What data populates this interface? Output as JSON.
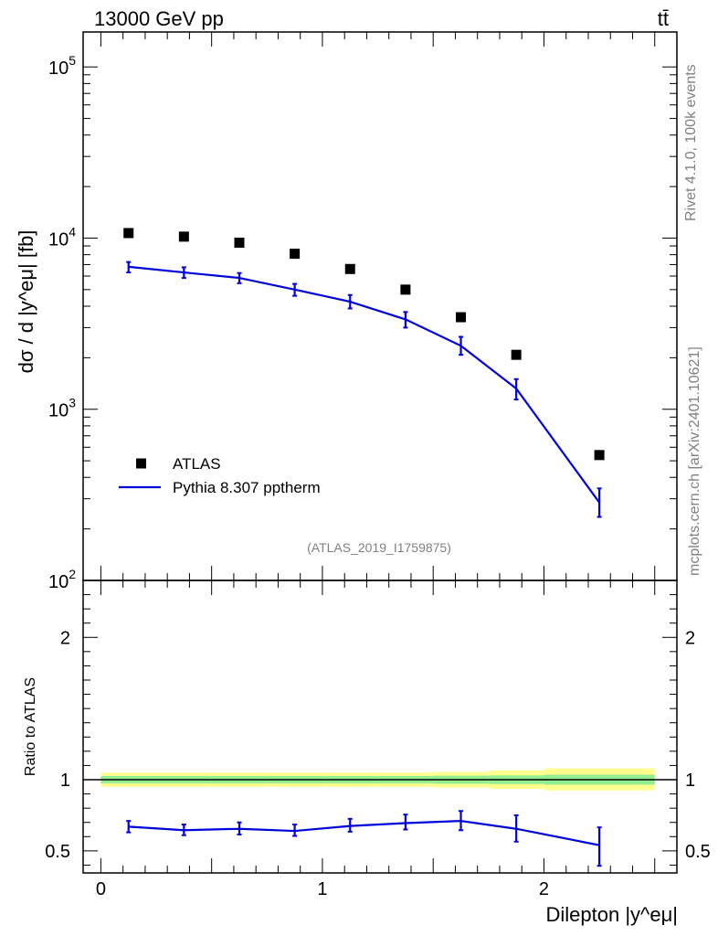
{
  "header": {
    "energy_label": "13000 GeV pp",
    "process_label": "tt̄"
  },
  "side_text": {
    "rivet": "Rivet 4.1.0,  100k events",
    "mcplots": "mcplots.cern.ch [arXiv:2401.10621]"
  },
  "analysis_tag": "(ATLAS_2019_I1759875)",
  "colors": {
    "data": "#000000",
    "mc": "#0000dd",
    "band_inner": "#90ee90",
    "band_outer": "#ffff90"
  },
  "chart_data": [
    {
      "type": "scatter+line",
      "panel": "main",
      "ylabel": "dσ / d |y^eμ| [fb]",
      "yscale": "log",
      "ylim": [
        100,
        160000
      ],
      "xlim": [
        -0.08,
        2.6
      ],
      "y_ticks": [
        {
          "value": 100,
          "label": "10",
          "exp": "2"
        },
        {
          "value": 1000,
          "label": "10",
          "exp": "3"
        },
        {
          "value": 10000,
          "label": "10",
          "exp": "4"
        },
        {
          "value": 100000,
          "label": "10",
          "exp": "5"
        }
      ],
      "legend": {
        "placement": "lower-left",
        "entries": [
          {
            "name": "ATLAS",
            "marker": "square"
          },
          {
            "name": "Pythia 8.307 pptherm",
            "marker": "line"
          }
        ]
      },
      "series": [
        {
          "name": "ATLAS",
          "x": [
            0.125,
            0.375,
            0.625,
            0.875,
            1.125,
            1.375,
            1.625,
            1.875,
            2.25
          ],
          "values": [
            10700,
            10200,
            9400,
            8100,
            6600,
            5000,
            3450,
            2080,
            540
          ]
        },
        {
          "name": "Pythia 8.307 pptherm",
          "x": [
            0.125,
            0.375,
            0.625,
            0.875,
            1.125,
            1.375,
            1.625,
            1.875,
            2.25
          ],
          "values": [
            6800,
            6300,
            5850,
            5000,
            4250,
            3350,
            2350,
            1320,
            285
          ],
          "err_low": [
            6300,
            5850,
            5450,
            4600,
            3880,
            3000,
            2080,
            1140,
            235
          ],
          "err_high": [
            7250,
            6750,
            6250,
            5400,
            4650,
            3700,
            2650,
            1500,
            345
          ]
        }
      ]
    },
    {
      "type": "ratio",
      "panel": "ratio",
      "ylabel": "Ratio to ATLAS",
      "xlabel": "Dilepton |y^eμ|",
      "ylim": [
        0.345,
        2.4
      ],
      "xlim": [
        -0.08,
        2.6
      ],
      "y_ticks": [
        0.5,
        1,
        2
      ],
      "y_tick_labels": [
        "0.5",
        "1",
        "2"
      ],
      "x_ticks": [
        0,
        1,
        2
      ],
      "x_tick_labels": [
        "0",
        "1",
        "2"
      ],
      "bins": [
        [
          0,
          0.25
        ],
        [
          0.25,
          0.5
        ],
        [
          0.5,
          0.75
        ],
        [
          0.75,
          1.0
        ],
        [
          1.0,
          1.25
        ],
        [
          1.25,
          1.5
        ],
        [
          1.5,
          1.75
        ],
        [
          1.75,
          2.0
        ],
        [
          2.0,
          2.5
        ]
      ],
      "band_inner": [
        [
          0.975,
          1.025
        ],
        [
          0.975,
          1.025
        ],
        [
          0.975,
          1.025
        ],
        [
          0.975,
          1.025
        ],
        [
          0.975,
          1.025
        ],
        [
          0.975,
          1.025
        ],
        [
          0.972,
          1.028
        ],
        [
          0.97,
          1.03
        ],
        [
          0.965,
          1.035
        ]
      ],
      "band_outer": [
        [
          0.95,
          1.05
        ],
        [
          0.95,
          1.05
        ],
        [
          0.95,
          1.05
        ],
        [
          0.95,
          1.05
        ],
        [
          0.95,
          1.05
        ],
        [
          0.95,
          1.05
        ],
        [
          0.945,
          1.055
        ],
        [
          0.935,
          1.065
        ],
        [
          0.925,
          1.08
        ]
      ],
      "series": [
        {
          "name": "Pythia 8.307 pptherm",
          "x": [
            0.125,
            0.375,
            0.625,
            0.875,
            1.125,
            1.375,
            1.625,
            1.875,
            2.25
          ],
          "values": [
            0.67,
            0.645,
            0.655,
            0.64,
            0.675,
            0.695,
            0.71,
            0.655,
            0.54
          ],
          "err_low": [
            0.63,
            0.61,
            0.615,
            0.605,
            0.635,
            0.65,
            0.645,
            0.565,
            0.395
          ],
          "err_high": [
            0.71,
            0.685,
            0.7,
            0.685,
            0.725,
            0.755,
            0.78,
            0.75,
            0.665
          ]
        }
      ]
    }
  ]
}
